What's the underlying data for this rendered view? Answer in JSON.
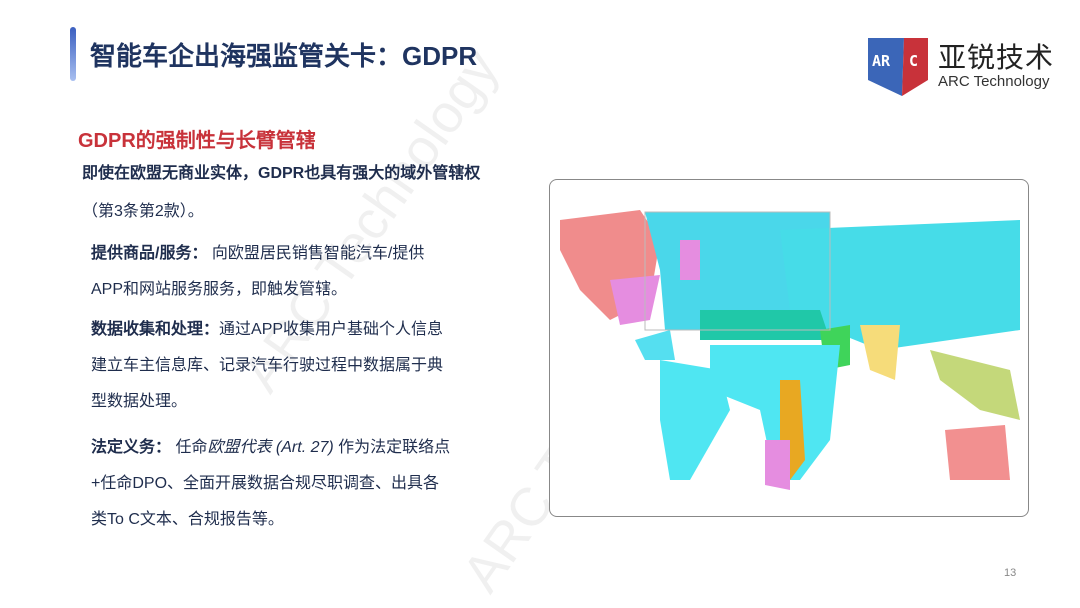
{
  "header": {
    "title": "智能车企出海强监管关卡：GDPR"
  },
  "logo": {
    "mark": "ARC",
    "cn": "亚锐技术",
    "en": "ARC Technology",
    "colors": {
      "blue": "#3b66b8",
      "red": "#c8323a"
    }
  },
  "subtitle": "GDPR的强制性与长臂管辖",
  "intro": {
    "line1": "即使在欧盟无商业实体，GDPR也具有强大的域外管辖权",
    "line2": "（第3条第2款）。"
  },
  "points": [
    {
      "label": "提供商品/服务：",
      "text1": "向欧盟居民销售智能汽车/提供",
      "text2": "APP和网站服务服务，即触发管辖。"
    },
    {
      "label": "数据收集和处理：",
      "text1": "通过APP收集用户基础个人信息",
      "text2": "建立车主信息库、记录汽车行驶过程中数据属于典",
      "text3": "型数据处理。"
    },
    {
      "label": "法定义务：",
      "text1a": "任命",
      "text1i": "欧盟代表 (Art. 27) ",
      "text1b": "作为法定联络点",
      "text2": "+任命DPO、全面开展数据合规尽职调查、出具各",
      "text3": "类To C文本、合规报告等。"
    }
  ],
  "watermark": "ARC Technology",
  "page_number": "13",
  "colors": {
    "title": "#1f3460",
    "subtitle": "#c8323a"
  }
}
